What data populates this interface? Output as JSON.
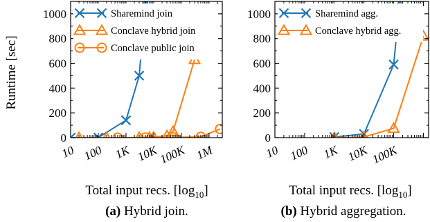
{
  "colors": {
    "blue": "#1f77b4",
    "orange": "#ff7f0e",
    "axis": "#000000"
  },
  "chart_data": [
    {
      "type": "line",
      "caption_tag": "(a)",
      "caption_text": " Hybrid join.",
      "ylabel": "Runtime [sec]",
      "xlabel": "Total input recs. [log",
      "xlabel_sub": "10",
      "xlabel_end": "]",
      "xscale": "log",
      "xlim": [
        10,
        3000000
      ],
      "ylim": [
        0,
        1100
      ],
      "yticks": [
        0,
        200,
        400,
        600,
        800,
        1000
      ],
      "ytick_labels": [
        "0",
        "200",
        "400",
        "600",
        "800",
        "1000"
      ],
      "xticks": [
        10,
        100,
        1000,
        10000,
        100000,
        1000000
      ],
      "xtick_labels": [
        "10",
        "100",
        "1K",
        "10K",
        "100K",
        "1M"
      ],
      "legend_position": "top-left",
      "series": [
        {
          "name": "Sharemind join",
          "color": "#1f77b4",
          "marker": "x",
          "x": [
            10,
            100,
            1000,
            3000,
            5000
          ],
          "y": [
            0,
            1,
            140,
            500,
            1100
          ]
        },
        {
          "name": "Conclave hybrid join",
          "color": "#ff7f0e",
          "marker": "triangle",
          "x": [
            20,
            200,
            3000,
            7000,
            10000,
            30000,
            50000,
            300000
          ],
          "y": [
            0,
            0,
            1,
            2,
            5,
            15,
            50,
            630
          ]
        },
        {
          "name": "Conclave public join",
          "color": "#ff7f0e",
          "marker": "circle",
          "x": [
            500,
            5000,
            50000,
            500000,
            2500000
          ],
          "y": [
            0,
            1,
            2,
            6,
            70
          ]
        }
      ]
    },
    {
      "type": "line",
      "caption_tag": "(b)",
      "caption_text": " Hybrid aggregation.",
      "ylabel": "",
      "xlabel": "Total input recs. [log",
      "xlabel_sub": "10",
      "xlabel_end": "]",
      "xscale": "log",
      "xlim": [
        10,
        1500000
      ],
      "ylim": [
        0,
        1100
      ],
      "yticks": [
        0,
        200,
        400,
        600,
        800,
        1000
      ],
      "ytick_labels": [
        "0",
        "200",
        "400",
        "600",
        "800",
        "1000"
      ],
      "xticks": [
        10,
        100,
        1000,
        10000,
        100000
      ],
      "xtick_labels": [
        "10",
        "100",
        "1K",
        "10K",
        "100K"
      ],
      "legend_position": "top-left",
      "series": [
        {
          "name": "Sharemind agg.",
          "color": "#1f77b4",
          "marker": "x",
          "x": [
            1000,
            10000,
            100000,
            160000
          ],
          "y": [
            5,
            30,
            590,
            1100
          ]
        },
        {
          "name": "Conclave hybrid agg.",
          "color": "#ff7f0e",
          "marker": "triangle",
          "x": [
            1000,
            10000,
            100000,
            1000000
          ],
          "y": [
            0,
            5,
            75,
            820
          ]
        }
      ]
    }
  ]
}
